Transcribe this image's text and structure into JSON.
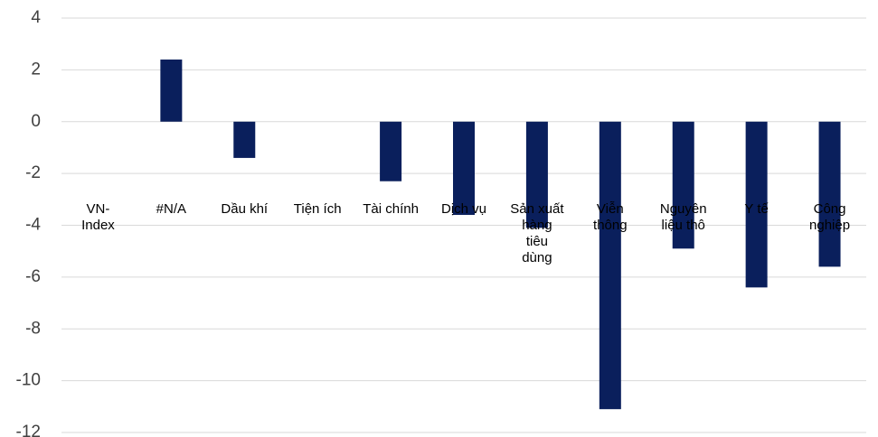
{
  "chart_data": {
    "type": "bar",
    "title": "",
    "xlabel": "",
    "ylabel": "",
    "ylim": [
      -12,
      4
    ],
    "yticks": [
      4,
      2,
      0,
      -2,
      -4,
      -6,
      -8,
      -10,
      -12
    ],
    "grid": true,
    "legend": "none",
    "bar_color": "#0a1f5c",
    "categories": [
      [
        "VN-",
        "Index"
      ],
      [
        "#N/A"
      ],
      [
        "Dầu khí"
      ],
      [
        "Tiện ích"
      ],
      [
        "Tài chính"
      ],
      [
        "Dịch vụ"
      ],
      [
        "Sản xuất",
        "hàng",
        "tiêu",
        "dùng"
      ],
      [
        "Viễn",
        "thông"
      ],
      [
        "Nguyên",
        "liệu thô"
      ],
      [
        "Y tế"
      ],
      [
        "Công",
        "nghiệp"
      ]
    ],
    "values": [
      0,
      2.4,
      -1.4,
      0,
      -2.3,
      -3.6,
      -4.1,
      -11.1,
      -4.9,
      -6.4,
      -5.6
    ]
  }
}
